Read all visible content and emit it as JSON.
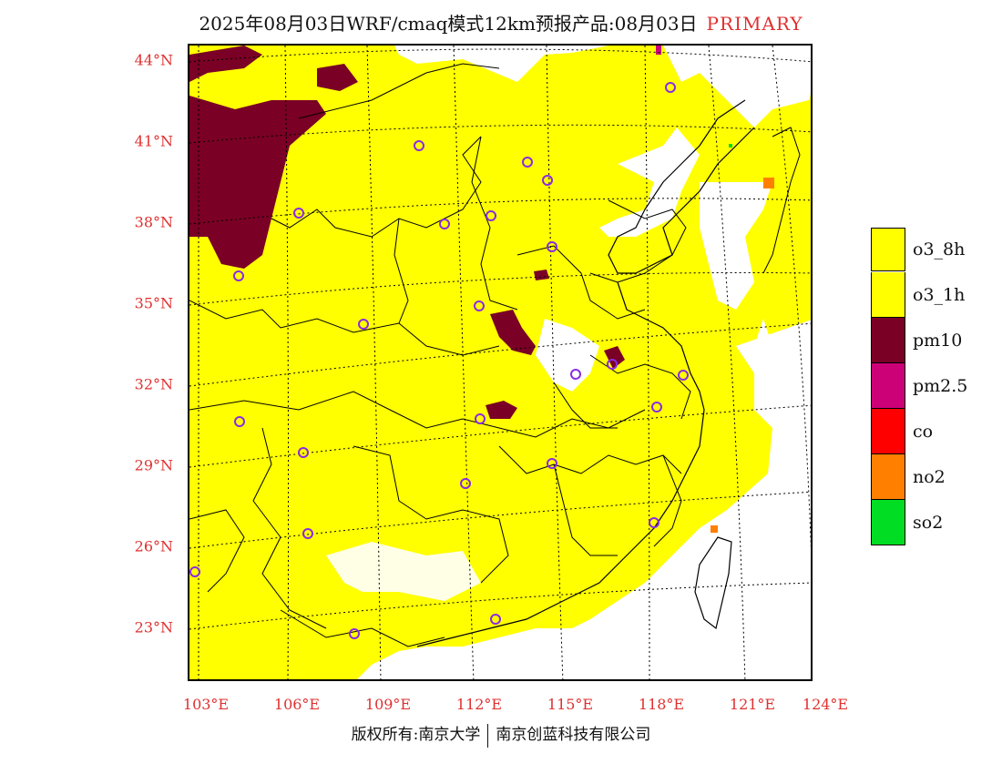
{
  "header": {
    "title": "2025年08月03日WRF/cmaq模式12km预报产品:08月03日",
    "tag": "PRIMARY"
  },
  "map": {
    "lat_labels": [
      "44°N",
      "41°N",
      "38°N",
      "35°N",
      "32°N",
      "29°N",
      "26°N",
      "23°N"
    ],
    "lon_labels": [
      "103°E",
      "106°E",
      "109°E",
      "112°E",
      "115°E",
      "118°E",
      "121°E",
      "124°E"
    ],
    "colors": {
      "o3_8h": "#ffff00",
      "pm10": "#7a0026",
      "marker": "#8a2be2"
    }
  },
  "legend": {
    "items": [
      {
        "label": "o3_8h",
        "color": "#ffff00"
      },
      {
        "label": "o3_1h",
        "color": "#ffff00"
      },
      {
        "label": "pm10",
        "color": "#7a0026"
      },
      {
        "label": "pm2.5",
        "color": "#cc0077"
      },
      {
        "label": "co",
        "color": "#ff0000"
      },
      {
        "label": "no2",
        "color": "#ff7f00"
      },
      {
        "label": "so2",
        "color": "#00dd22"
      }
    ]
  },
  "footer": {
    "left": "版权所有:南京大学",
    "right": "南京创蓝科技有限公司"
  }
}
